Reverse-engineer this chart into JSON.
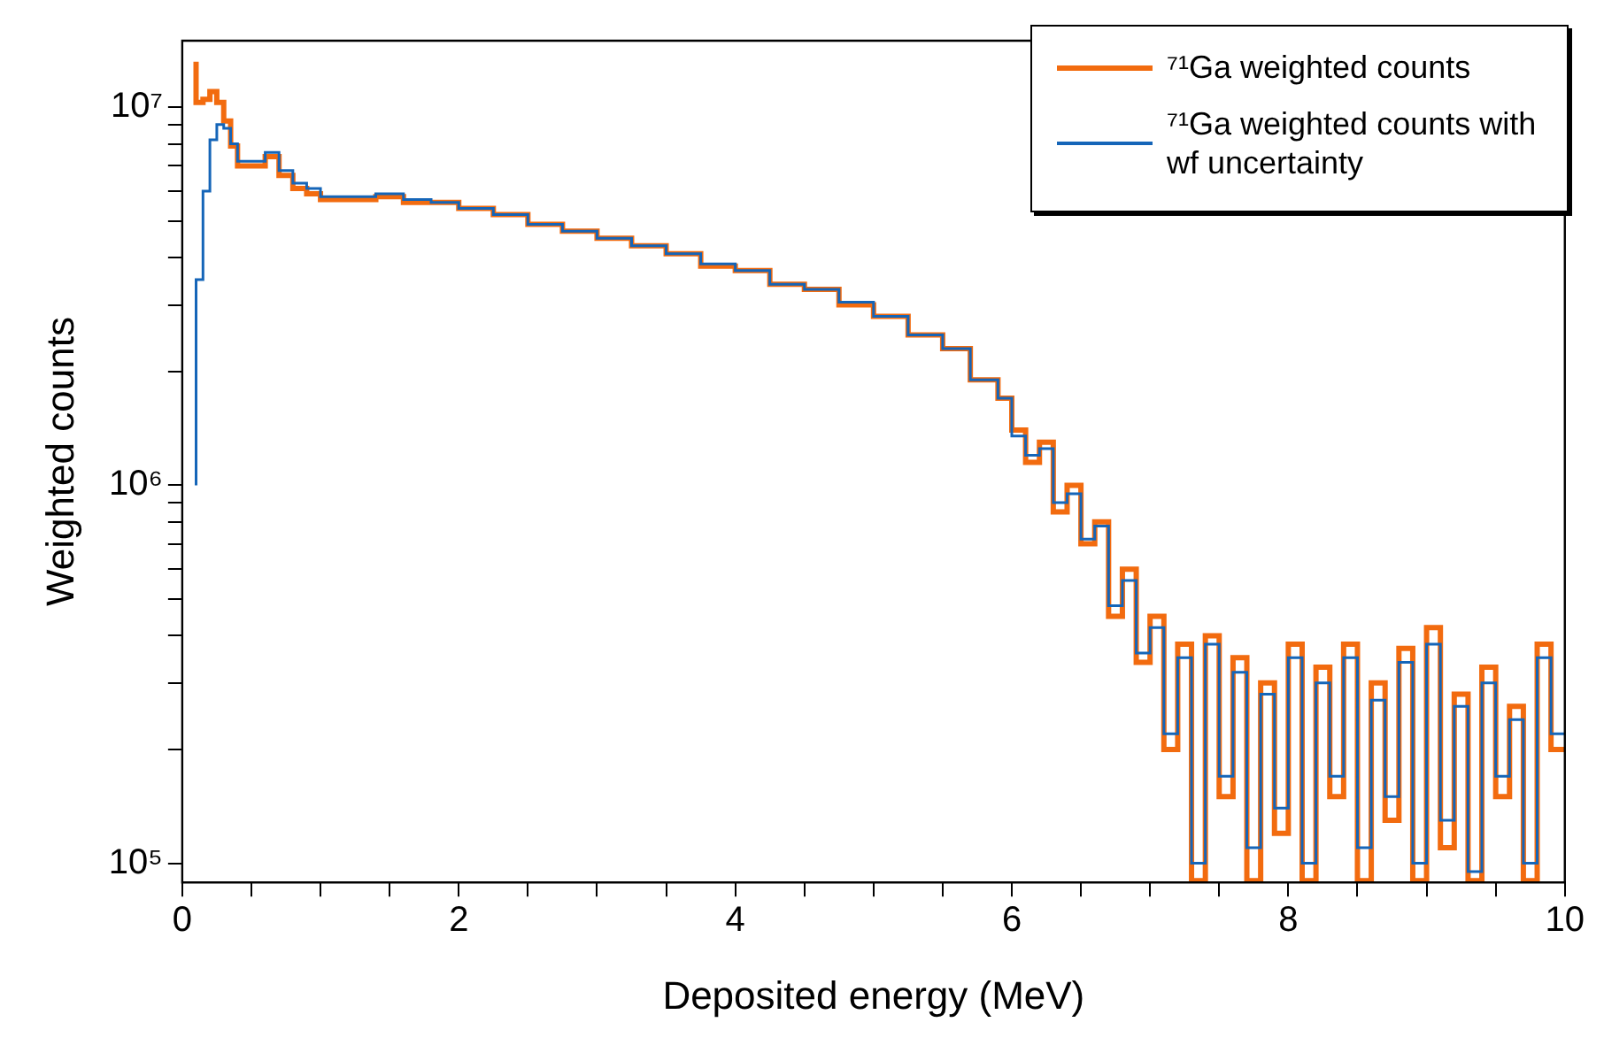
{
  "chart_data": {
    "type": "step",
    "xlabel": "Deposited energy (MeV)",
    "ylabel": "Weighted counts",
    "log": "y",
    "legend": "top right",
    "xlim": [
      0,
      10
    ],
    "ylim": [
      89000,
      15000000
    ],
    "xticks": [
      0,
      {
        "value": 0.5,
        "label": null
      },
      {
        "value": 1,
        "label": null
      },
      {
        "value": 1.5,
        "label": null
      },
      2,
      {
        "value": 2.5,
        "label": null
      },
      {
        "value": 3,
        "label": null
      },
      {
        "value": 3.5,
        "label": null
      },
      4,
      {
        "value": 4.5,
        "label": null
      },
      {
        "value": 5,
        "label": null
      },
      {
        "value": 5.5,
        "label": null
      },
      6,
      {
        "value": 6.5,
        "label": null
      },
      {
        "value": 7,
        "label": null
      },
      {
        "value": 7.5,
        "label": null
      },
      8,
      {
        "value": 8.5,
        "label": null
      },
      {
        "value": 9,
        "label": null
      },
      {
        "value": 9.5,
        "label": null
      },
      10
    ],
    "yticks": [
      {
        "value": 100000,
        "label": "10⁵"
      },
      {
        "value": 200000,
        "label": null
      },
      {
        "value": 300000,
        "label": null
      },
      {
        "value": 400000,
        "label": null
      },
      {
        "value": 500000,
        "label": null
      },
      {
        "value": 600000,
        "label": null
      },
      {
        "value": 700000,
        "label": null
      },
      {
        "value": 800000,
        "label": null
      },
      {
        "value": 900000,
        "label": null
      },
      {
        "value": 1000000,
        "label": "10⁶"
      },
      {
        "value": 2000000,
        "label": null
      },
      {
        "value": 3000000,
        "label": null
      },
      {
        "value": 4000000,
        "label": null
      },
      {
        "value": 5000000,
        "label": null
      },
      {
        "value": 6000000,
        "label": null
      },
      {
        "value": 7000000,
        "label": null
      },
      {
        "value": 8000000,
        "label": null
      },
      {
        "value": 9000000,
        "label": null
      },
      {
        "value": 10000000,
        "label": "10⁷"
      }
    ],
    "x": [
      0.1,
      0.15,
      0.2,
      0.25,
      0.3,
      0.35,
      0.4,
      0.5,
      0.6,
      0.7,
      0.8,
      0.9,
      1.0,
      1.2,
      1.4,
      1.6,
      1.8,
      2.0,
      2.25,
      2.5,
      2.75,
      3.0,
      3.25,
      3.5,
      3.75,
      4.0,
      4.25,
      4.5,
      4.75,
      5.0,
      5.25,
      5.5,
      5.7,
      5.9,
      6.0,
      6.1,
      6.2,
      6.3,
      6.4,
      6.5,
      6.6,
      6.7,
      6.8,
      6.9,
      7.0,
      7.1,
      7.2,
      7.3,
      7.4,
      7.5,
      7.6,
      7.7,
      7.8,
      7.9,
      8.0,
      8.1,
      8.2,
      8.3,
      8.4,
      8.5,
      8.6,
      8.7,
      8.8,
      8.9,
      9.0,
      9.1,
      9.2,
      9.3,
      9.4,
      9.5,
      9.6,
      9.7,
      9.8,
      9.9,
      10.0
    ],
    "series": [
      {
        "name": "⁷¹Ga weighted counts",
        "color": "#f26b0f",
        "values": [
          13200000,
          10300000,
          10500000,
          11000000,
          10300000,
          9200000,
          7900000,
          7000000,
          7000000,
          7400000,
          6600000,
          6100000,
          5900000,
          5700000,
          5700000,
          5800000,
          5600000,
          5600000,
          5400000,
          5200000,
          4900000,
          4700000,
          4500000,
          4300000,
          4100000,
          3800000,
          3700000,
          3400000,
          3300000,
          3000000,
          2800000,
          2500000,
          2300000,
          1900000,
          1700000,
          1400000,
          1150000,
          1300000,
          850000,
          1000000,
          700000,
          800000,
          450000,
          600000,
          340000,
          450000,
          200000,
          380000,
          90000,
          400000,
          150000,
          350000,
          90000,
          300000,
          120000,
          380000,
          90000,
          330000,
          150000,
          380000,
          90000,
          300000,
          130000,
          370000,
          90000,
          420000,
          110000,
          280000,
          90000,
          330000,
          150000,
          260000,
          90000,
          380000,
          200000
        ]
      },
      {
        "name": "⁷¹Ga weighted counts with wf uncertainty",
        "color": "#1565b8",
        "values": [
          1000000,
          3500000,
          6000000,
          8200000,
          9000000,
          8800000,
          8000000,
          7200000,
          7200000,
          7600000,
          6800000,
          6300000,
          6100000,
          5800000,
          5800000,
          5900000,
          5700000,
          5600000,
          5400000,
          5200000,
          4900000,
          4700000,
          4500000,
          4300000,
          4100000,
          3850000,
          3700000,
          3400000,
          3300000,
          3050000,
          2800000,
          2500000,
          2300000,
          1900000,
          1700000,
          1350000,
          1200000,
          1250000,
          900000,
          950000,
          720000,
          780000,
          480000,
          560000,
          360000,
          420000,
          220000,
          350000,
          100000,
          380000,
          170000,
          320000,
          110000,
          280000,
          140000,
          350000,
          100000,
          300000,
          170000,
          350000,
          110000,
          270000,
          150000,
          340000,
          100000,
          380000,
          130000,
          260000,
          95000,
          300000,
          170000,
          240000,
          100000,
          350000,
          220000
        ]
      }
    ]
  }
}
